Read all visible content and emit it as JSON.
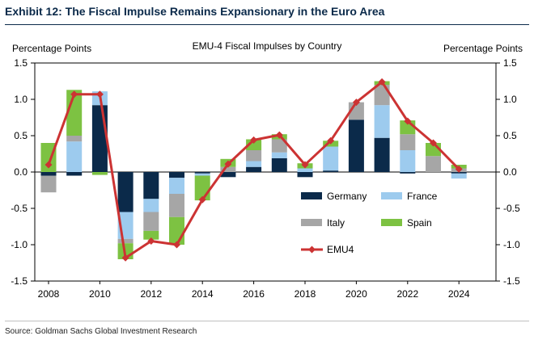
{
  "exhibit_title": "Exhibit 12: The Fiscal Impulse Remains Expansionary in the Euro Area",
  "source_note": "Source: Goldman Sachs Global Investment Research",
  "colors": {
    "germany": "#0b2a4a",
    "france": "#9dcbee",
    "italy": "#a6a6a6",
    "spain": "#7dc242",
    "emu4": "#cc3333"
  },
  "chart_data": {
    "type": "bar",
    "subtype": "stacked-bar-with-line",
    "title": "EMU-4 Fiscal Impulses by Country",
    "ylabel_left": "Percentage Points",
    "ylabel_right": "Percentage Points",
    "ylim": [
      -1.5,
      1.5
    ],
    "yticks": [
      "1.5",
      "1.0",
      "0.5",
      "0.0",
      "-0.5",
      "-1.0",
      "-1.5"
    ],
    "xticks": [
      "2008",
      "2010",
      "2012",
      "2014",
      "2016",
      "2018",
      "2020",
      "2022",
      "2024"
    ],
    "categories": [
      "2008",
      "2009",
      "2010",
      "2011",
      "2012",
      "2013",
      "2014",
      "2015",
      "2016",
      "2017",
      "2018",
      "2019",
      "2020",
      "2021",
      "2022",
      "2023",
      "2024"
    ],
    "series": [
      {
        "name": "Germany",
        "key": "germany",
        "kind": "bar",
        "values": [
          -0.05,
          -0.05,
          0.92,
          -0.55,
          -0.37,
          -0.08,
          -0.02,
          -0.07,
          0.07,
          0.19,
          -0.07,
          0.02,
          0.72,
          0.47,
          -0.02,
          0.0,
          -0.02
        ]
      },
      {
        "name": "France",
        "key": "france",
        "kind": "bar",
        "values": [
          0.0,
          0.42,
          0.19,
          -0.37,
          -0.18,
          -0.22,
          -0.03,
          0.0,
          0.08,
          0.08,
          0.05,
          0.33,
          0.0,
          0.45,
          0.3,
          0.0,
          -0.07
        ]
      },
      {
        "name": "Italy",
        "key": "italy",
        "kind": "bar",
        "values": [
          -0.23,
          0.08,
          0.0,
          -0.06,
          -0.26,
          -0.32,
          0.0,
          0.07,
          0.15,
          0.18,
          0.0,
          0.0,
          0.24,
          0.28,
          0.22,
          0.22,
          0.05
        ]
      },
      {
        "name": "Spain",
        "key": "spain",
        "kind": "bar",
        "values": [
          0.4,
          0.63,
          -0.04,
          -0.22,
          -0.12,
          -0.38,
          -0.34,
          0.11,
          0.15,
          0.07,
          0.07,
          0.08,
          0.0,
          0.05,
          0.19,
          0.18,
          0.05
        ]
      },
      {
        "name": "EMU4",
        "key": "emu4",
        "kind": "line",
        "values": [
          0.1,
          1.07,
          1.07,
          -1.18,
          -0.95,
          -1.0,
          -0.38,
          0.11,
          0.44,
          0.51,
          0.1,
          0.43,
          0.96,
          1.24,
          0.7,
          0.4,
          0.04
        ]
      }
    ],
    "legend": {
      "placement": "inside-bottom-right",
      "items": [
        "Germany",
        "France",
        "Italy",
        "Spain",
        "EMU4"
      ]
    }
  }
}
